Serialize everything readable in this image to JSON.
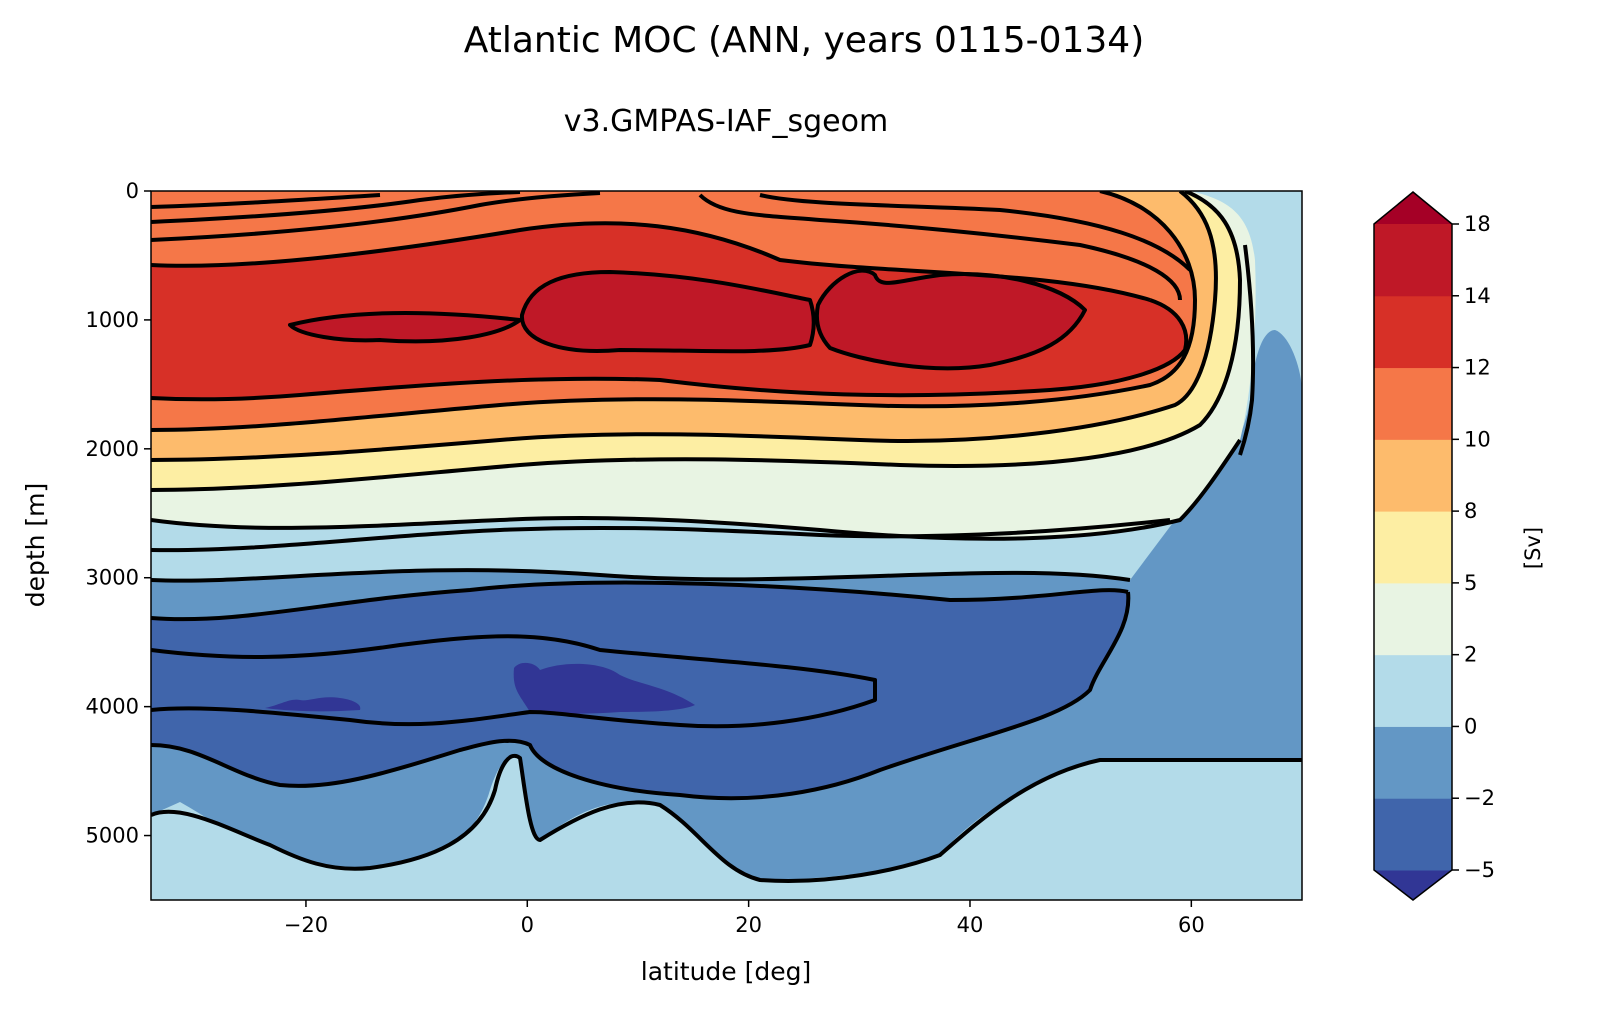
{
  "chart_data": {
    "type": "contour",
    "title": "Atlantic MOC (ANN, years 0115-0134)",
    "subtitle": "v3.GMPAS-IAF_sgeom",
    "xlabel": "latitude [deg]",
    "ylabel": "depth [m]",
    "xlim": [
      -34,
      70
    ],
    "ylim": [
      5500,
      0
    ],
    "x_ticks": [
      -20,
      0,
      20,
      40,
      60
    ],
    "x_tick_labels": [
      "−20",
      "0",
      "20",
      "40",
      "60"
    ],
    "y_ticks": [
      0,
      1000,
      2000,
      3000,
      4000,
      5000
    ],
    "y_tick_labels": [
      "0",
      "1000",
      "2000",
      "3000",
      "4000",
      "5000"
    ],
    "colorbar": {
      "label": "[Sv]",
      "levels": [
        -5,
        -2,
        0,
        2,
        5,
        8,
        10,
        12,
        14,
        18
      ],
      "tick_labels": [
        "−5",
        "−2",
        "0",
        "2",
        "5",
        "8",
        "10",
        "12",
        "14",
        "18"
      ],
      "extend": "both",
      "colors": [
        "#313695",
        "#4065ab",
        "#6397c5",
        "#b3dbe9",
        "#e8f4e3",
        "#fdeea3",
        "#fdbb6c",
        "#f57748",
        "#d73027",
        "#bf1827",
        "#a50026"
      ]
    },
    "features": {
      "upper_cell_max_sv": 14,
      "upper_cell_core_depth_m": 1000,
      "abyssal_cell_min_sv": -5,
      "abyssal_cell_core_depth_m": 4000
    }
  }
}
